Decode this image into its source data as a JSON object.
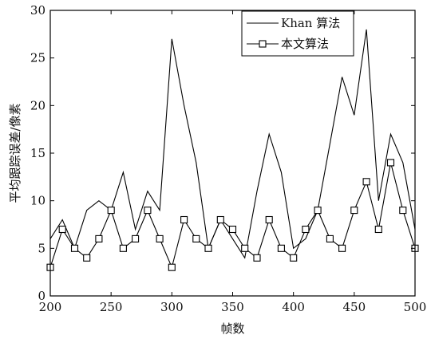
{
  "chart_data": {
    "type": "line",
    "title": "",
    "xlabel": "帧数",
    "ylabel": "平均跟踪误差/像素",
    "xlim": [
      200,
      500
    ],
    "ylim": [
      0,
      30
    ],
    "xticks": [
      200,
      250,
      300,
      350,
      400,
      450,
      500
    ],
    "yticks": [
      0,
      5,
      10,
      15,
      20,
      25,
      30
    ],
    "grid": false,
    "legend_position": "top-right",
    "series": [
      {
        "name": "Khan 算法",
        "marker": "none",
        "color": "#000000",
        "x": [
          200,
          210,
          220,
          230,
          240,
          250,
          260,
          270,
          280,
          290,
          300,
          310,
          320,
          330,
          340,
          350,
          360,
          370,
          380,
          390,
          400,
          410,
          420,
          430,
          440,
          450,
          460,
          470,
          480,
          490,
          500
        ],
        "y": [
          6,
          8,
          5,
          9,
          10,
          9,
          13,
          7,
          11,
          9,
          27,
          20,
          14,
          5,
          8,
          6,
          4,
          11,
          17,
          13,
          5,
          6,
          9,
          16,
          23,
          19,
          28,
          10,
          17,
          14,
          7
        ]
      },
      {
        "name": "本文算法",
        "marker": "square",
        "color": "#000000",
        "x": [
          200,
          210,
          220,
          230,
          240,
          250,
          260,
          270,
          280,
          290,
          300,
          310,
          320,
          330,
          340,
          350,
          360,
          370,
          380,
          390,
          400,
          410,
          420,
          430,
          440,
          450,
          460,
          470,
          480,
          490,
          500
        ],
        "y": [
          3,
          7,
          5,
          4,
          6,
          9,
          5,
          6,
          9,
          6,
          3,
          8,
          6,
          5,
          8,
          7,
          5,
          4,
          8,
          5,
          4,
          7,
          9,
          6,
          5,
          9,
          12,
          7,
          14,
          9,
          5
        ]
      }
    ]
  }
}
